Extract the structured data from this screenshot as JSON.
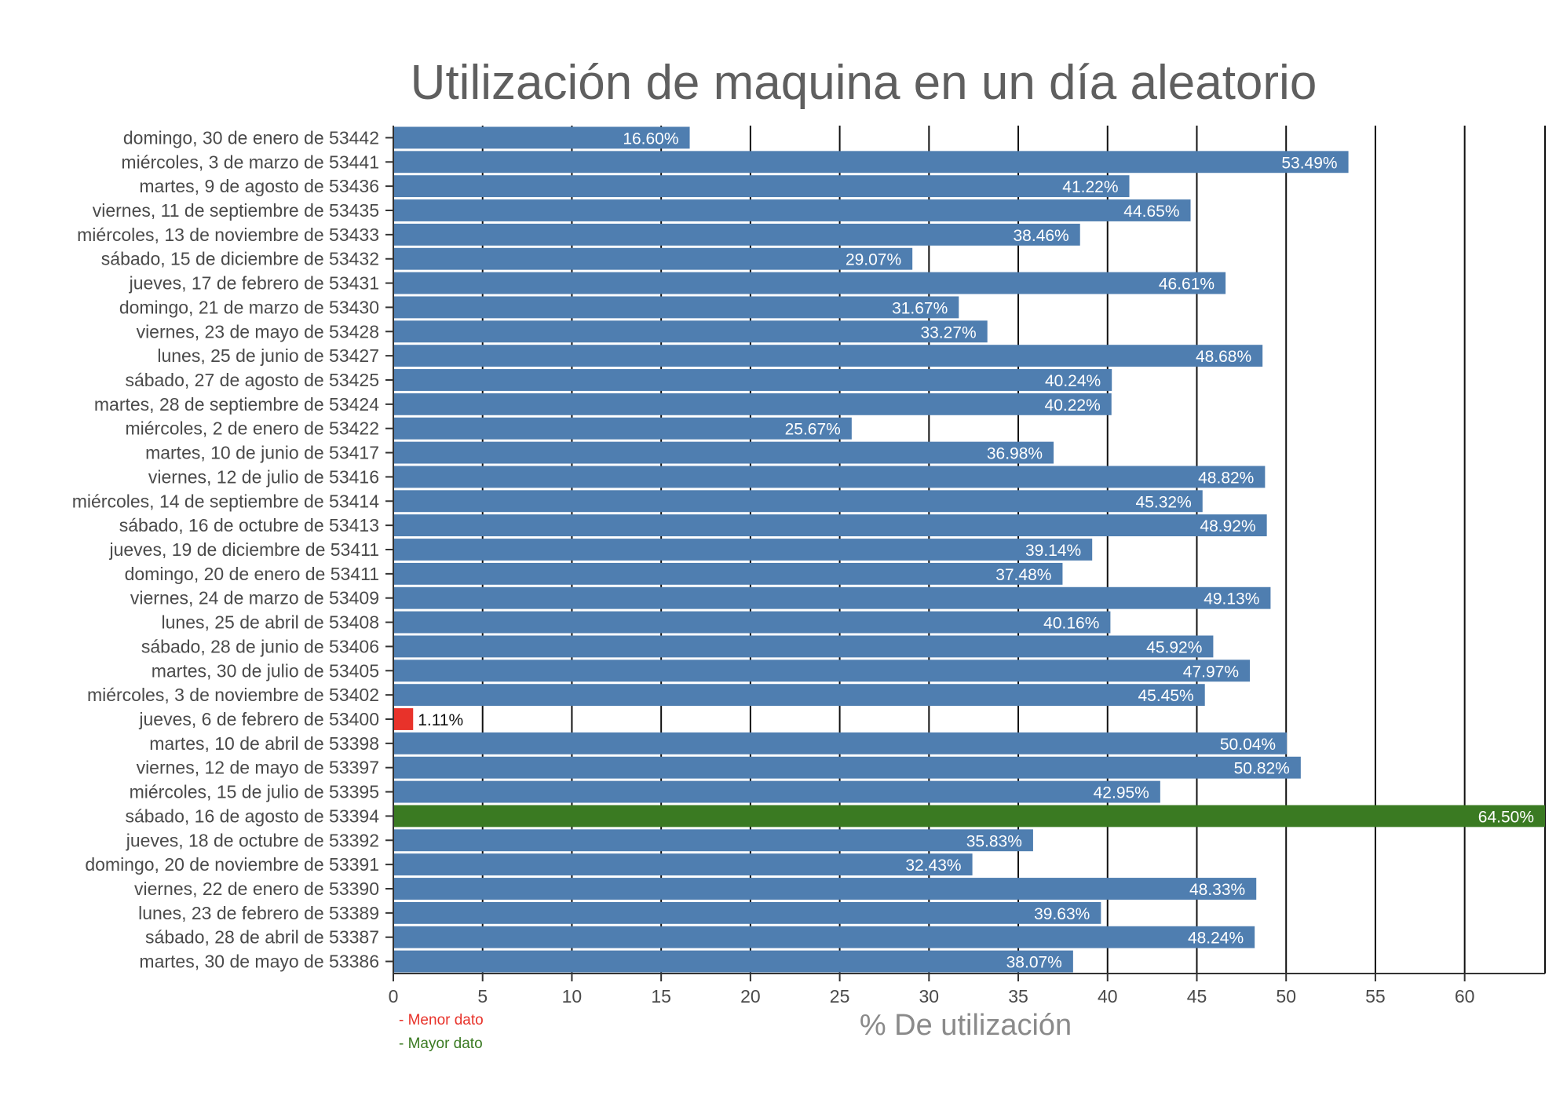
{
  "chart_data": {
    "type": "bar",
    "orientation": "horizontal",
    "title": "Utilización de maquina en un día aleatorio",
    "xlabel": "% De utilización",
    "ylabel": "",
    "xlim": [
      0,
      64.5
    ],
    "xticks": [
      0,
      5,
      10,
      15,
      20,
      25,
      30,
      35,
      40,
      45,
      50,
      55,
      60
    ],
    "grid": "vertical",
    "colors": {
      "default": "#4f7eb0",
      "min": "#e8322a",
      "max": "#3a7a22"
    },
    "categories": [
      "domingo, 30 de enero de 53442",
      "miércoles, 3 de marzo de 53441",
      "martes, 9 de agosto de 53436",
      "viernes, 11 de septiembre de 53435",
      "miércoles, 13 de noviembre de 53433",
      "sábado, 15 de diciembre de 53432",
      "jueves, 17 de febrero de 53431",
      "domingo, 21 de marzo de 53430",
      "viernes, 23 de mayo de 53428",
      "lunes, 25 de junio de 53427",
      "sábado, 27 de agosto de 53425",
      "martes, 28 de septiembre de 53424",
      "miércoles, 2 de enero de 53422",
      "martes, 10 de junio de 53417",
      "viernes, 12 de julio de 53416",
      "miércoles, 14 de septiembre de 53414",
      "sábado, 16 de octubre de 53413",
      "jueves, 19 de diciembre de 53411",
      "domingo, 20 de enero de 53411",
      "viernes, 24 de marzo de 53409",
      "lunes, 25 de abril de 53408",
      "sábado, 28 de junio de 53406",
      "martes, 30 de julio de 53405",
      "miércoles, 3 de noviembre de 53402",
      "jueves, 6 de febrero de 53400",
      "martes, 10 de abril de 53398",
      "viernes, 12 de mayo de 53397",
      "miércoles, 15 de julio de 53395",
      "sábado, 16 de agosto de 53394",
      "jueves, 18 de octubre de 53392",
      "domingo, 20 de noviembre de 53391",
      "viernes, 22 de enero de 53390",
      "lunes, 23 de febrero de 53389",
      "sábado, 28 de abril de 53387",
      "martes, 30 de mayo de 53386"
    ],
    "values": [
      16.6,
      53.49,
      41.22,
      44.65,
      38.46,
      29.07,
      46.61,
      31.67,
      33.27,
      48.68,
      40.24,
      40.22,
      25.67,
      36.98,
      48.82,
      45.32,
      48.92,
      39.14,
      37.48,
      49.13,
      40.16,
      45.92,
      47.97,
      45.45,
      1.11,
      50.04,
      50.82,
      42.95,
      64.5,
      35.83,
      32.43,
      48.33,
      39.63,
      48.24,
      38.07
    ],
    "data_labels": [
      "16.60%",
      "53.49%",
      "41.22%",
      "44.65%",
      "38.46%",
      "29.07%",
      "46.61%",
      "31.67%",
      "33.27%",
      "48.68%",
      "40.24%",
      "40.22%",
      "25.67%",
      "36.98%",
      "48.82%",
      "45.32%",
      "48.92%",
      "39.14%",
      "37.48%",
      "49.13%",
      "40.16%",
      "45.92%",
      "47.97%",
      "45.45%",
      "1.11%",
      "50.04%",
      "50.82%",
      "42.95%",
      "64.50%",
      "35.83%",
      "32.43%",
      "48.33%",
      "39.63%",
      "48.24%",
      "38.07%"
    ],
    "legend": {
      "placement": "bottom-left",
      "entries": [
        {
          "label": "- Menor dato",
          "color": "#e8322a"
        },
        {
          "label": "- Mayor dato",
          "color": "#3a7a22"
        }
      ]
    }
  }
}
